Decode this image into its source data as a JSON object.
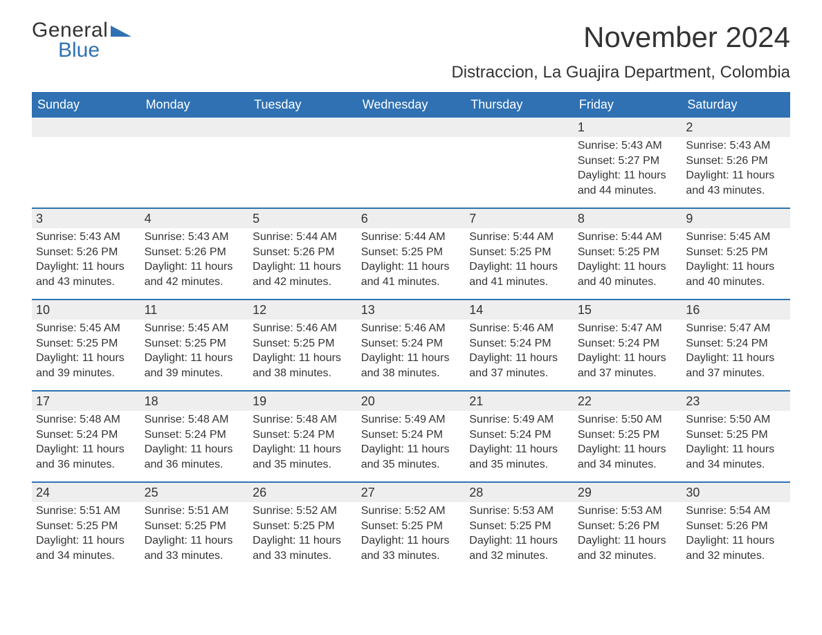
{
  "brand": {
    "word1": "General",
    "word2": "Blue",
    "accent_color": "#2f71b3"
  },
  "title": "November 2024",
  "subtitle": "Distraccion, La Guajira Department, Colombia",
  "colors": {
    "header_bg": "#2f71b3",
    "header_fg": "#ffffff",
    "daynum_bg": "#eeeeee",
    "row_border": "#2f71b3",
    "text": "#333333",
    "page_bg": "#ffffff"
  },
  "typography": {
    "title_fontsize": 42,
    "subtitle_fontsize": 24,
    "dayhead_fontsize": 18,
    "cell_fontsize": 16
  },
  "day_names": [
    "Sunday",
    "Monday",
    "Tuesday",
    "Wednesday",
    "Thursday",
    "Friday",
    "Saturday"
  ],
  "weeks": [
    [
      null,
      null,
      null,
      null,
      null,
      {
        "n": "1",
        "sunrise": "Sunrise: 5:43 AM",
        "sunset": "Sunset: 5:27 PM",
        "daylight": "Daylight: 11 hours and 44 minutes."
      },
      {
        "n": "2",
        "sunrise": "Sunrise: 5:43 AM",
        "sunset": "Sunset: 5:26 PM",
        "daylight": "Daylight: 11 hours and 43 minutes."
      }
    ],
    [
      {
        "n": "3",
        "sunrise": "Sunrise: 5:43 AM",
        "sunset": "Sunset: 5:26 PM",
        "daylight": "Daylight: 11 hours and 43 minutes."
      },
      {
        "n": "4",
        "sunrise": "Sunrise: 5:43 AM",
        "sunset": "Sunset: 5:26 PM",
        "daylight": "Daylight: 11 hours and 42 minutes."
      },
      {
        "n": "5",
        "sunrise": "Sunrise: 5:44 AM",
        "sunset": "Sunset: 5:26 PM",
        "daylight": "Daylight: 11 hours and 42 minutes."
      },
      {
        "n": "6",
        "sunrise": "Sunrise: 5:44 AM",
        "sunset": "Sunset: 5:25 PM",
        "daylight": "Daylight: 11 hours and 41 minutes."
      },
      {
        "n": "7",
        "sunrise": "Sunrise: 5:44 AM",
        "sunset": "Sunset: 5:25 PM",
        "daylight": "Daylight: 11 hours and 41 minutes."
      },
      {
        "n": "8",
        "sunrise": "Sunrise: 5:44 AM",
        "sunset": "Sunset: 5:25 PM",
        "daylight": "Daylight: 11 hours and 40 minutes."
      },
      {
        "n": "9",
        "sunrise": "Sunrise: 5:45 AM",
        "sunset": "Sunset: 5:25 PM",
        "daylight": "Daylight: 11 hours and 40 minutes."
      }
    ],
    [
      {
        "n": "10",
        "sunrise": "Sunrise: 5:45 AM",
        "sunset": "Sunset: 5:25 PM",
        "daylight": "Daylight: 11 hours and 39 minutes."
      },
      {
        "n": "11",
        "sunrise": "Sunrise: 5:45 AM",
        "sunset": "Sunset: 5:25 PM",
        "daylight": "Daylight: 11 hours and 39 minutes."
      },
      {
        "n": "12",
        "sunrise": "Sunrise: 5:46 AM",
        "sunset": "Sunset: 5:25 PM",
        "daylight": "Daylight: 11 hours and 38 minutes."
      },
      {
        "n": "13",
        "sunrise": "Sunrise: 5:46 AM",
        "sunset": "Sunset: 5:24 PM",
        "daylight": "Daylight: 11 hours and 38 minutes."
      },
      {
        "n": "14",
        "sunrise": "Sunrise: 5:46 AM",
        "sunset": "Sunset: 5:24 PM",
        "daylight": "Daylight: 11 hours and 37 minutes."
      },
      {
        "n": "15",
        "sunrise": "Sunrise: 5:47 AM",
        "sunset": "Sunset: 5:24 PM",
        "daylight": "Daylight: 11 hours and 37 minutes."
      },
      {
        "n": "16",
        "sunrise": "Sunrise: 5:47 AM",
        "sunset": "Sunset: 5:24 PM",
        "daylight": "Daylight: 11 hours and 37 minutes."
      }
    ],
    [
      {
        "n": "17",
        "sunrise": "Sunrise: 5:48 AM",
        "sunset": "Sunset: 5:24 PM",
        "daylight": "Daylight: 11 hours and 36 minutes."
      },
      {
        "n": "18",
        "sunrise": "Sunrise: 5:48 AM",
        "sunset": "Sunset: 5:24 PM",
        "daylight": "Daylight: 11 hours and 36 minutes."
      },
      {
        "n": "19",
        "sunrise": "Sunrise: 5:48 AM",
        "sunset": "Sunset: 5:24 PM",
        "daylight": "Daylight: 11 hours and 35 minutes."
      },
      {
        "n": "20",
        "sunrise": "Sunrise: 5:49 AM",
        "sunset": "Sunset: 5:24 PM",
        "daylight": "Daylight: 11 hours and 35 minutes."
      },
      {
        "n": "21",
        "sunrise": "Sunrise: 5:49 AM",
        "sunset": "Sunset: 5:24 PM",
        "daylight": "Daylight: 11 hours and 35 minutes."
      },
      {
        "n": "22",
        "sunrise": "Sunrise: 5:50 AM",
        "sunset": "Sunset: 5:25 PM",
        "daylight": "Daylight: 11 hours and 34 minutes."
      },
      {
        "n": "23",
        "sunrise": "Sunrise: 5:50 AM",
        "sunset": "Sunset: 5:25 PM",
        "daylight": "Daylight: 11 hours and 34 minutes."
      }
    ],
    [
      {
        "n": "24",
        "sunrise": "Sunrise: 5:51 AM",
        "sunset": "Sunset: 5:25 PM",
        "daylight": "Daylight: 11 hours and 34 minutes."
      },
      {
        "n": "25",
        "sunrise": "Sunrise: 5:51 AM",
        "sunset": "Sunset: 5:25 PM",
        "daylight": "Daylight: 11 hours and 33 minutes."
      },
      {
        "n": "26",
        "sunrise": "Sunrise: 5:52 AM",
        "sunset": "Sunset: 5:25 PM",
        "daylight": "Daylight: 11 hours and 33 minutes."
      },
      {
        "n": "27",
        "sunrise": "Sunrise: 5:52 AM",
        "sunset": "Sunset: 5:25 PM",
        "daylight": "Daylight: 11 hours and 33 minutes."
      },
      {
        "n": "28",
        "sunrise": "Sunrise: 5:53 AM",
        "sunset": "Sunset: 5:25 PM",
        "daylight": "Daylight: 11 hours and 32 minutes."
      },
      {
        "n": "29",
        "sunrise": "Sunrise: 5:53 AM",
        "sunset": "Sunset: 5:26 PM",
        "daylight": "Daylight: 11 hours and 32 minutes."
      },
      {
        "n": "30",
        "sunrise": "Sunrise: 5:54 AM",
        "sunset": "Sunset: 5:26 PM",
        "daylight": "Daylight: 11 hours and 32 minutes."
      }
    ]
  ]
}
